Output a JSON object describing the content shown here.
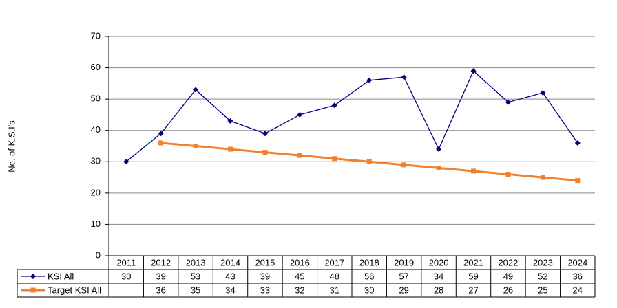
{
  "chart_data": {
    "type": "line",
    "y_label": "No. of K.S.I's",
    "categories": [
      "2011",
      "2012",
      "2013",
      "2014",
      "2015",
      "2016",
      "2017",
      "2018",
      "2019",
      "2020",
      "2021",
      "2022",
      "2023",
      "2024"
    ],
    "series": [
      {
        "name": "KSI All",
        "color": "#000080",
        "values": [
          30,
          39,
          53,
          43,
          39,
          45,
          48,
          56,
          57,
          34,
          59,
          49,
          52,
          36
        ]
      },
      {
        "name": "Target KSI All",
        "color": "#f0802e",
        "values": [
          null,
          36,
          35,
          34,
          33,
          32,
          31,
          30,
          29,
          28,
          27,
          26,
          25,
          24
        ]
      }
    ],
    "ylim": [
      0,
      70
    ],
    "yticks": [
      0,
      10,
      20,
      30,
      40,
      50,
      60,
      70
    ],
    "grid": true
  }
}
